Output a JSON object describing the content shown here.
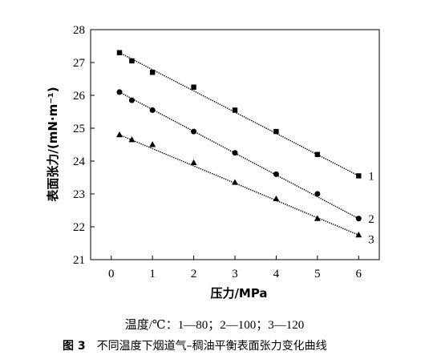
{
  "chart_data": {
    "type": "scatter",
    "xlabel": "压力/MPa",
    "ylabel": "表面张力/(mN·m⁻¹)",
    "xlim": [
      -0.5,
      6.5
    ],
    "ylim": [
      21,
      28
    ],
    "xticks": [
      0,
      1,
      2,
      3,
      4,
      5,
      6
    ],
    "yticks": [
      21,
      22,
      23,
      24,
      25,
      26,
      27,
      28
    ],
    "grid": false,
    "series": [
      {
        "name": "1",
        "marker": "square",
        "x": [
          0.2,
          0.5,
          1,
          2,
          3,
          4,
          5,
          6
        ],
        "y": [
          27.3,
          27.05,
          26.7,
          26.25,
          25.55,
          24.9,
          24.2,
          23.55
        ]
      },
      {
        "name": "2",
        "marker": "circle",
        "x": [
          0.2,
          0.5,
          1,
          2,
          3,
          4,
          5,
          6
        ],
        "y": [
          26.1,
          25.85,
          25.55,
          24.9,
          24.25,
          23.6,
          23.0,
          22.25
        ]
      },
      {
        "name": "3",
        "marker": "triangle",
        "x": [
          0.2,
          0.5,
          1,
          2,
          3,
          4,
          5,
          6
        ],
        "y": [
          24.8,
          24.65,
          24.5,
          23.95,
          23.35,
          22.85,
          22.25,
          21.75
        ]
      }
    ],
    "fit_lines": [
      {
        "series": "1",
        "from": [
          0.2,
          27.3
        ],
        "to": [
          6,
          23.55
        ]
      },
      {
        "series": "2",
        "from": [
          0.2,
          26.1
        ],
        "to": [
          6,
          22.25
        ]
      },
      {
        "series": "3",
        "from": [
          0.2,
          24.8
        ],
        "to": [
          6,
          21.75
        ]
      }
    ]
  },
  "legend_note": "温度/℃：1—80；2—100；3—120",
  "caption": {
    "figure_number": "图 3",
    "text": "不同温度下烟道气–稠油平衡表面张力变化曲线"
  }
}
